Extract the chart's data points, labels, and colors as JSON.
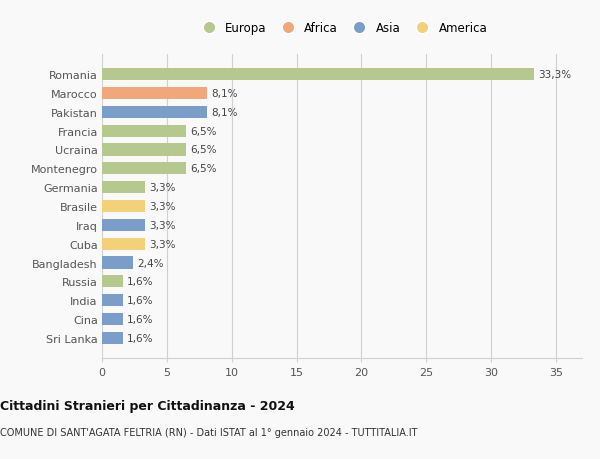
{
  "countries": [
    "Romania",
    "Marocco",
    "Pakistan",
    "Francia",
    "Ucraina",
    "Montenegro",
    "Germania",
    "Brasile",
    "Iraq",
    "Cuba",
    "Bangladesh",
    "Russia",
    "India",
    "Cina",
    "Sri Lanka"
  ],
  "values": [
    33.3,
    8.1,
    8.1,
    6.5,
    6.5,
    6.5,
    3.3,
    3.3,
    3.3,
    3.3,
    2.4,
    1.6,
    1.6,
    1.6,
    1.6
  ],
  "labels": [
    "33,3%",
    "8,1%",
    "8,1%",
    "6,5%",
    "6,5%",
    "6,5%",
    "3,3%",
    "3,3%",
    "3,3%",
    "3,3%",
    "2,4%",
    "1,6%",
    "1,6%",
    "1,6%",
    "1,6%"
  ],
  "continents": [
    "Europa",
    "Africa",
    "Asia",
    "Europa",
    "Europa",
    "Europa",
    "Europa",
    "America",
    "Asia",
    "America",
    "Asia",
    "Europa",
    "Asia",
    "Asia",
    "Asia"
  ],
  "colors": {
    "Europa": "#b5c98e",
    "Africa": "#f0a87a",
    "Asia": "#7b9dc9",
    "America": "#f5d07a"
  },
  "legend_order": [
    "Europa",
    "Africa",
    "Asia",
    "America"
  ],
  "xlim": [
    0,
    37
  ],
  "xticks": [
    0,
    5,
    10,
    15,
    20,
    25,
    30,
    35
  ],
  "title": "Cittadini Stranieri per Cittadinanza - 2024",
  "subtitle": "COMUNE DI SANT'AGATA FELTRIA (RN) - Dati ISTAT al 1° gennaio 2024 - TUTTITALIA.IT",
  "background_color": "#f9f9f9",
  "grid_color": "#d0d0d0",
  "bar_height": 0.65,
  "label_fontsize": 7.5,
  "tick_fontsize": 8,
  "title_fontsize": 9,
  "subtitle_fontsize": 7
}
